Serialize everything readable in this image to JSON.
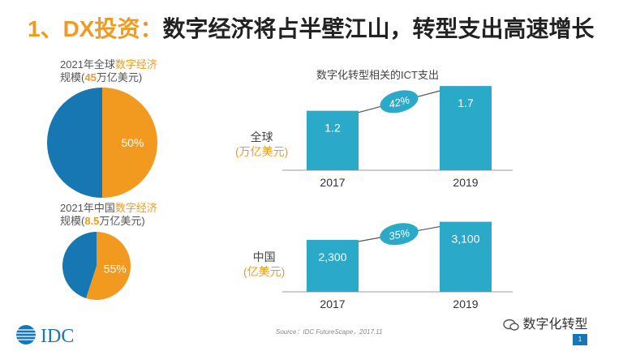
{
  "title": {
    "prefix": "1、DX投资：",
    "main": "数字经济将占半壁江山，转型支出高速增长"
  },
  "pie_global": {
    "line1_pre": "2021年全球",
    "line1_hl": "数字经济",
    "line2_pre": "规模(",
    "line2_val": "45",
    "line2_post": "万亿美元)"
  },
  "pie_china": {
    "line1_pre": "2021年中国",
    "line1_hl": "数字经济",
    "line2_pre": "规模(",
    "line2_val": "8.5",
    "line2_post": "万亿美元)"
  },
  "ict": {
    "title": "数字化转型相关的ICT支出",
    "global_label": "全球",
    "global_unit": "(万亿美元)",
    "china_label": "中国",
    "china_unit": "(亿美元)"
  },
  "chart_data": [
    {
      "type": "pie",
      "title": "2021年全球数字经济规模(45万亿美元)",
      "slices": [
        {
          "label": "50%",
          "value": 50,
          "color": "#f29a20"
        },
        {
          "label": "",
          "value": 50,
          "color": "#1777b3"
        }
      ]
    },
    {
      "type": "pie",
      "title": "2021年中国数字经济规模(8.5万亿美元)",
      "slices": [
        {
          "label": "55%",
          "value": 55,
          "color": "#f29a20"
        },
        {
          "label": "",
          "value": 45,
          "color": "#1777b3"
        }
      ]
    },
    {
      "type": "bar",
      "categories": [
        "2017",
        "2019"
      ],
      "values": [
        1.2,
        1.7
      ],
      "labels": [
        "1.2",
        "1.7"
      ],
      "growth": "42%",
      "color": "#2aa9c9",
      "ylim": [
        0,
        1.8
      ]
    },
    {
      "type": "bar",
      "categories": [
        "2017",
        "2019"
      ],
      "values": [
        2300,
        3100
      ],
      "labels": [
        "2,300",
        "3,100"
      ],
      "growth": "35%",
      "color": "#2aa9c9",
      "ylim": [
        0,
        3300
      ]
    }
  ],
  "footer": {
    "source": "Source：IDC FutureScape，2017.11",
    "wechat": "数字化转型",
    "page": "1",
    "logo": "IDC"
  },
  "colors": {
    "orange": "#f29a20",
    "blue": "#1777b3",
    "teal": "#2aa9c9"
  }
}
